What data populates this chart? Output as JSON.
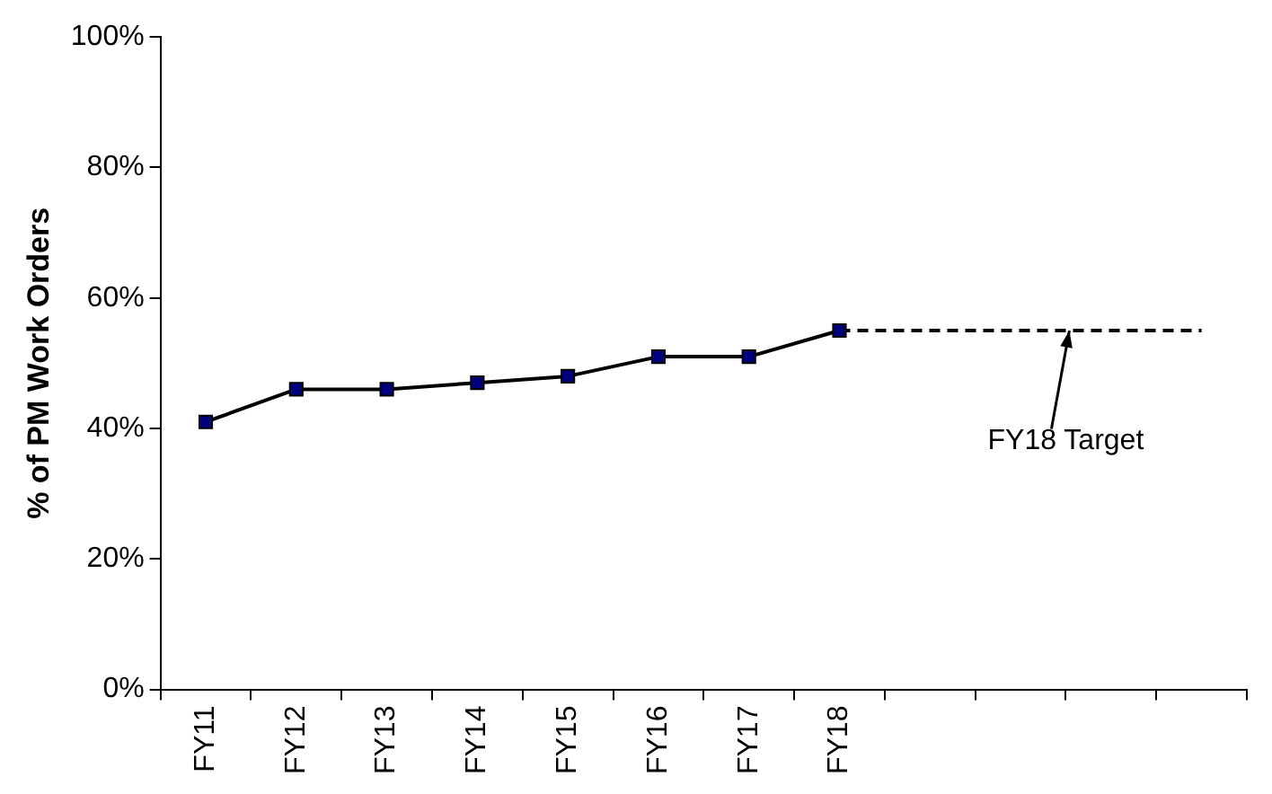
{
  "chart_data": {
    "type": "line",
    "ylabel": "% of PM Work Orders",
    "categories": [
      "FY11",
      "FY12",
      "FY13",
      "FY14",
      "FY15",
      "FY16",
      "FY17",
      "FY18",
      null,
      null,
      null,
      null
    ],
    "series": [
      {
        "color": "#000080",
        "values": [
          41,
          46,
          46,
          47,
          48,
          51,
          51,
          55,
          null,
          null,
          null,
          null
        ],
        "marker": "square",
        "line_style": "solid"
      },
      {
        "color": "#000000",
        "values": [
          null,
          null,
          null,
          null,
          null,
          null,
          null,
          55,
          55,
          55,
          55,
          55
        ],
        "marker": "none",
        "line_style": "dashed"
      }
    ],
    "ylim": [
      0,
      100
    ],
    "yticks": [
      {
        "value": 0,
        "label": "0%"
      },
      {
        "value": 20,
        "label": "20%"
      },
      {
        "value": 40,
        "label": "40%"
      },
      {
        "value": 60,
        "label": "60%"
      },
      {
        "value": 80,
        "label": "80%"
      },
      {
        "value": 100,
        "label": "100%"
      }
    ],
    "grid": false,
    "legend": false,
    "annotations": [
      {
        "text": "FY18 Target",
        "y": 55
      }
    ]
  }
}
